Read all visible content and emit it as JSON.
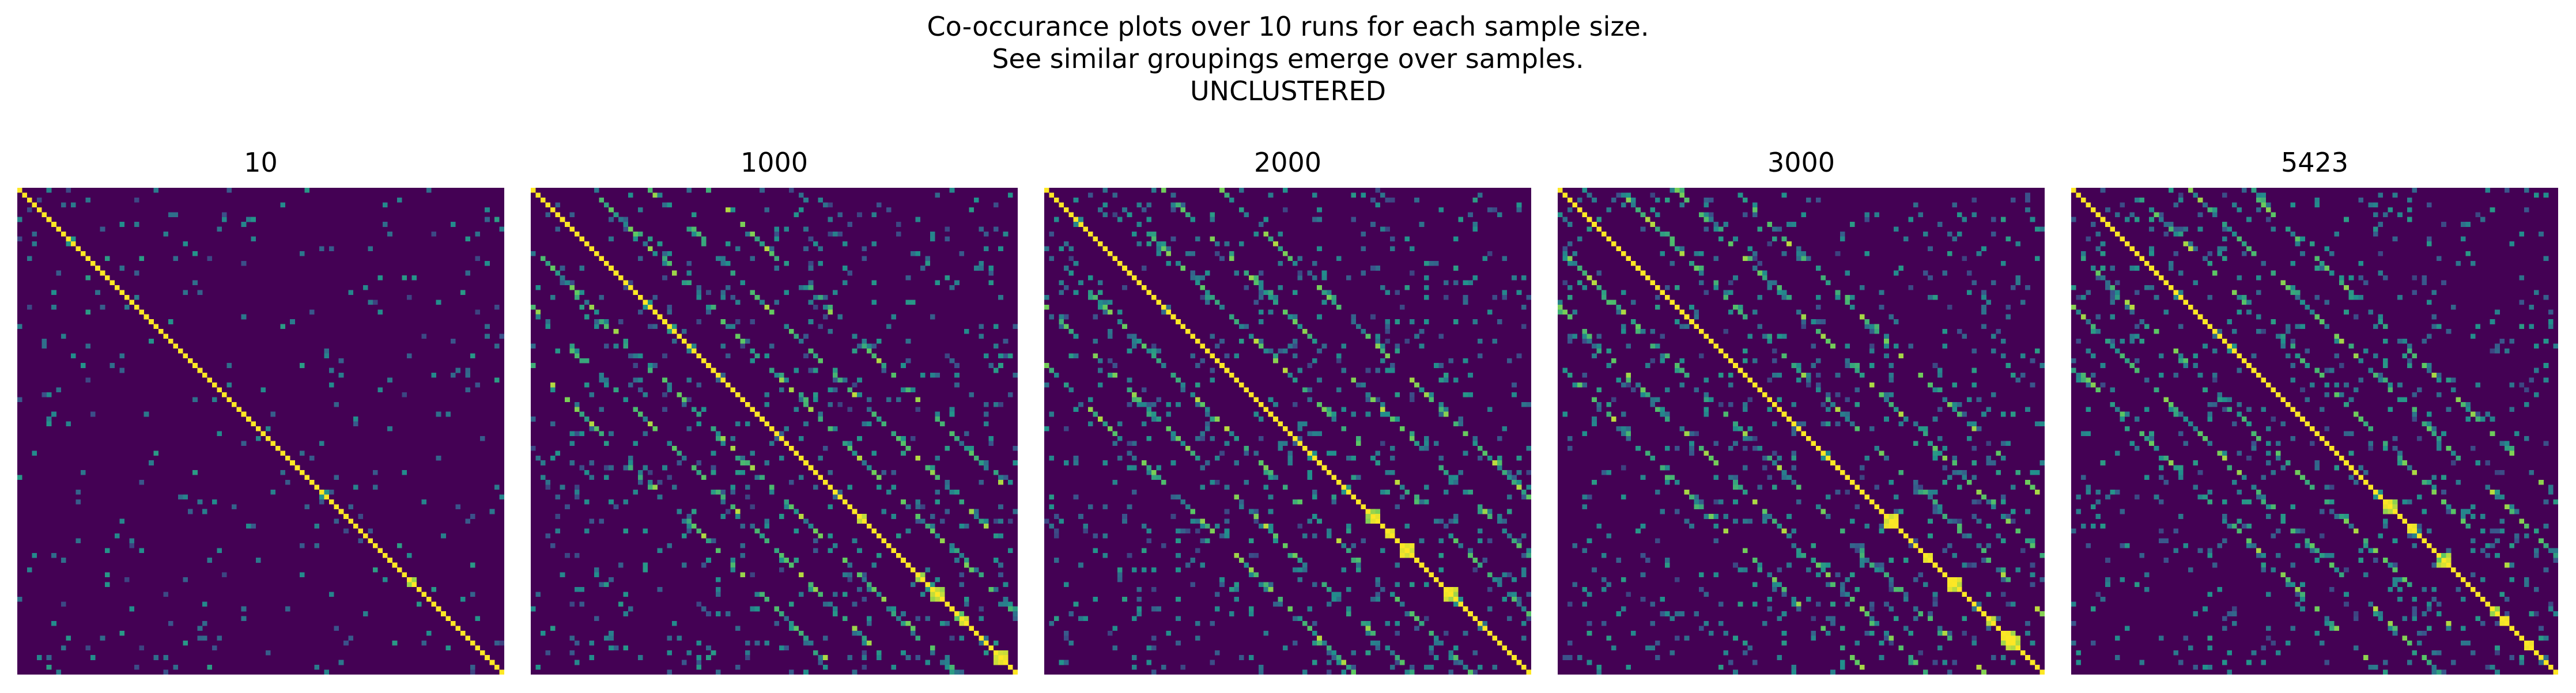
{
  "figure": {
    "title_lines": [
      "Co-occurance plots over 10 runs for each sample size.",
      "See similar groupings emerge over samples.",
      "UNCLUSTERED"
    ]
  },
  "colors": {
    "background": "#440154",
    "colormap": "viridis",
    "stops": [
      "#440154",
      "#3b528b",
      "#21918c",
      "#5ec962",
      "#fde725"
    ]
  },
  "chart_data": [
    {
      "type": "heatmap",
      "title": "10",
      "matrix_size": 100,
      "value_range": [
        0,
        1
      ],
      "grid": false,
      "note": "Co-occurrence values 0 to 1 on viridis scale; bright diagonal, sparse off-diagonal entries, larger blocks in lower-right corner.",
      "diagonal_value": 1.0,
      "off_diagonal_density": 0.015,
      "band_offsets": [],
      "block_region": "bottom-right"
    },
    {
      "type": "heatmap",
      "title": "1000",
      "matrix_size": 100,
      "value_range": [
        0,
        1
      ],
      "grid": false,
      "diagonal_value": 1.0,
      "off_diagonal_density": 0.03,
      "band_offsets": [
        12,
        24,
        36
      ],
      "block_region": "bottom-right"
    },
    {
      "type": "heatmap",
      "title": "2000",
      "matrix_size": 100,
      "value_range": [
        0,
        1
      ],
      "grid": false,
      "diagonal_value": 1.0,
      "off_diagonal_density": 0.035,
      "band_offsets": [
        12,
        24,
        36
      ],
      "block_region": "bottom-right"
    },
    {
      "type": "heatmap",
      "title": "3000",
      "matrix_size": 100,
      "value_range": [
        0,
        1
      ],
      "grid": false,
      "diagonal_value": 1.0,
      "off_diagonal_density": 0.035,
      "band_offsets": [
        12,
        24,
        36
      ],
      "block_region": "bottom-right"
    },
    {
      "type": "heatmap",
      "title": "5423",
      "matrix_size": 100,
      "value_range": [
        0,
        1
      ],
      "grid": false,
      "diagonal_value": 1.0,
      "off_diagonal_density": 0.035,
      "band_offsets": [
        12,
        24,
        36
      ],
      "block_region": "bottom-right"
    }
  ]
}
